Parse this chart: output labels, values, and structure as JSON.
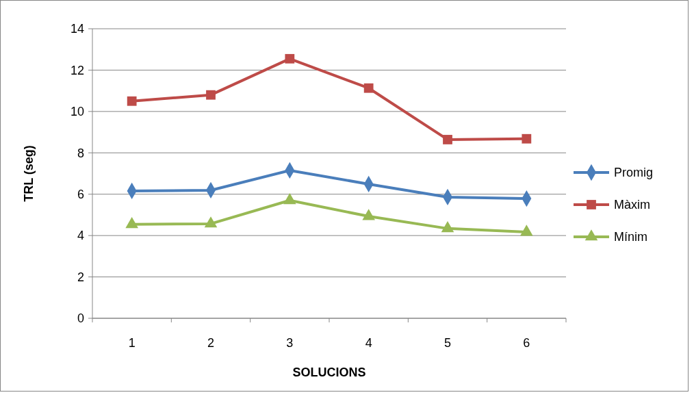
{
  "chart_data": {
    "type": "line",
    "xlabel": "SOLUCIONS",
    "ylabel": "TRL (seg)",
    "categories": [
      "1",
      "2",
      "3",
      "4",
      "5",
      "6"
    ],
    "series": [
      {
        "name": "Promig",
        "color": "#4a7ebb",
        "marker": "diamond",
        "values": [
          6.16,
          6.19,
          7.15,
          6.49,
          5.86,
          5.79
        ]
      },
      {
        "name": "Màxim",
        "color": "#be4b48",
        "marker": "square",
        "values": [
          10.5,
          10.8,
          12.55,
          11.13,
          8.64,
          8.68
        ]
      },
      {
        "name": "Mínim",
        "color": "#98b954",
        "marker": "triangle",
        "values": [
          4.54,
          4.57,
          5.7,
          4.93,
          4.34,
          4.17
        ]
      }
    ],
    "ylim": [
      0,
      14
    ],
    "yticks": [
      0,
      2,
      4,
      6,
      8,
      10,
      12,
      14
    ],
    "grid": "y",
    "legend": "right"
  }
}
